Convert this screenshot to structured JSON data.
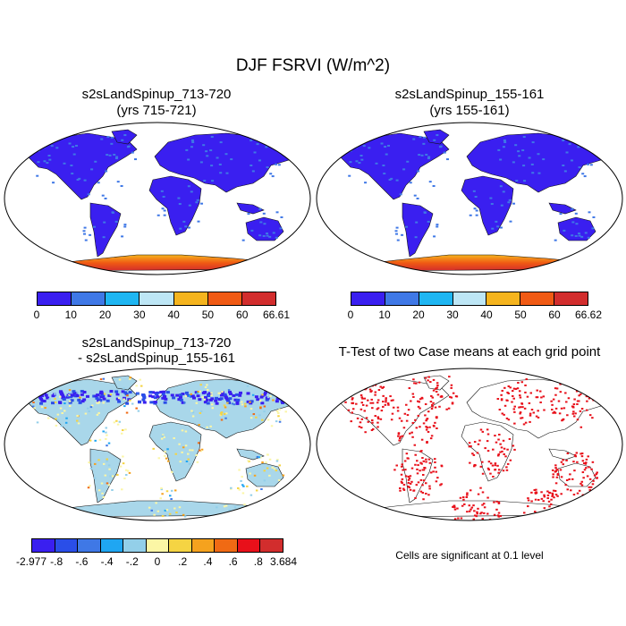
{
  "figure": {
    "title": "DJF FSRVI (W/m^2)"
  },
  "panels": {
    "top_left": {
      "title_line1": "s2sLandSpinup_713-720",
      "title_line2": "(yrs 715-721)",
      "colorbar": {
        "tick_labels": [
          "0",
          "10",
          "20",
          "30",
          "40",
          "50",
          "60",
          "66.61"
        ],
        "colors": [
          "#3a1ff0",
          "#3f78e6",
          "#1fb6f2",
          "#bde6f5",
          "#f5b41e",
          "#f05a14",
          "#d22d2d"
        ]
      }
    },
    "top_right": {
      "title_line1": "s2sLandSpinup_155-161",
      "title_line2": "(yrs 155-161)",
      "colorbar": {
        "tick_labels": [
          "0",
          "10",
          "20",
          "30",
          "40",
          "50",
          "60",
          "66.62"
        ],
        "colors": [
          "#3a1ff0",
          "#3f78e6",
          "#1fb6f2",
          "#bde6f5",
          "#f5b41e",
          "#f05a14",
          "#d22d2d"
        ]
      }
    },
    "bottom_left": {
      "title_line1": "s2sLandSpinup_713-720",
      "title_line2": "- s2sLandSpinup_155-161",
      "colorbar": {
        "tick_labels": [
          "-2.977",
          "-.8",
          "-.6",
          "-.4",
          "-.2",
          "0",
          ".2",
          ".4",
          ".6",
          ".8",
          "3.684"
        ],
        "colors": [
          "#3a1ff0",
          "#2a4ee8",
          "#3f78e6",
          "#1fa6f2",
          "#93cfe9",
          "#fbf6a5",
          "#f5d443",
          "#f5a21e",
          "#f06a14",
          "#e8101a",
          "#d22d2d"
        ]
      }
    },
    "bottom_right": {
      "title": "T-Test of two Case means at each grid point",
      "footnote": "Cells are significant at 0.1 level",
      "significant_color": "#e8101a"
    }
  }
}
